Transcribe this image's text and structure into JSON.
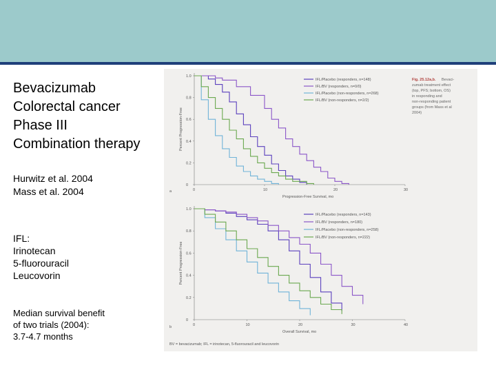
{
  "slide": {
    "title_lines": [
      "Bevacizumab",
      "Colorectal cancer",
      "Phase III",
      "Combination therapy"
    ],
    "refs": [
      "Hurwitz et al. 2004",
      "Mass et al. 2004"
    ],
    "abbr": [
      "IFL:",
      "Irinotecan",
      "5-fluorouracil",
      "Leucovorin"
    ],
    "benefit": [
      "Median survival benefit",
      "of two trials (2004):",
      "3.7-4.7 months"
    ]
  },
  "figure": {
    "caption_title": "Fig. 25.12a,b.",
    "caption_lines": [
      "Bevaci-",
      "zumab treatment effect",
      "(top, PFS; bottom, OS)",
      "in responding and",
      "non-responding patient",
      "groups (from Mass et al",
      "2004)"
    ],
    "footnote": "BV = bevacizumab; IFL = irinotecan, 5-fluorouracil and leucovorin",
    "colors": {
      "plac_resp": "#5a3fbd",
      "bv_resp": "#8a55c8",
      "plac_non": "#6fb3d8",
      "bv_non": "#6aa84f"
    }
  },
  "chart_data": [
    {
      "type": "line",
      "panel": "a",
      "ylabel": "Percent Progression-Free",
      "xlabel": "Progression-Free Survival, mo",
      "yticks": [
        "1.0",
        "0.8",
        "0.6",
        "0.4",
        "0.2",
        "0"
      ],
      "xticks": [
        "0",
        "10",
        "20",
        "30"
      ],
      "xlim": [
        0,
        30
      ],
      "ylim": [
        0,
        1
      ],
      "series": [
        {
          "name": "IFL/Placebo (responders, n=148)",
          "x": [
            0,
            1,
            2,
            3,
            4,
            5,
            6,
            7,
            8,
            9,
            10,
            11,
            12,
            13,
            14,
            15,
            16
          ],
          "y": [
            1,
            1,
            0.97,
            0.92,
            0.85,
            0.76,
            0.65,
            0.55,
            0.44,
            0.35,
            0.27,
            0.19,
            0.13,
            0.08,
            0.05,
            0.02,
            0
          ]
        },
        {
          "name": "IFL/BV (responders, n=0/0)",
          "x": [
            0,
            2,
            3,
            4,
            6,
            8,
            10,
            11,
            12,
            13,
            14,
            15,
            16,
            17,
            18,
            19,
            20,
            21,
            22
          ],
          "y": [
            1,
            1,
            0.98,
            0.96,
            0.9,
            0.82,
            0.7,
            0.6,
            0.52,
            0.42,
            0.35,
            0.28,
            0.22,
            0.16,
            0.12,
            0.06,
            0.03,
            0.01,
            0
          ]
        },
        {
          "name": "IFL/Placebo (non-responders, n=268)",
          "x": [
            0,
            1,
            2,
            3,
            4,
            5,
            6,
            7,
            8,
            9,
            10,
            11,
            12
          ],
          "y": [
            1,
            0.78,
            0.6,
            0.45,
            0.33,
            0.25,
            0.17,
            0.12,
            0.08,
            0.05,
            0.03,
            0.01,
            0
          ]
        },
        {
          "name": "IFL/BV (non-responders, n=2/2)",
          "x": [
            0,
            1,
            2,
            3,
            4,
            5,
            6,
            7,
            8,
            9,
            10,
            11,
            12,
            13,
            14,
            16,
            17
          ],
          "y": [
            1,
            0.9,
            0.8,
            0.7,
            0.6,
            0.5,
            0.42,
            0.33,
            0.26,
            0.2,
            0.15,
            0.11,
            0.08,
            0.05,
            0.03,
            0.01,
            0
          ]
        }
      ]
    },
    {
      "type": "line",
      "panel": "b",
      "ylabel": "Percent Progression-Free",
      "xlabel": "Overall Survival, mo",
      "yticks": [
        "1.0",
        "0.8",
        "0.6",
        "0.4",
        "0.2",
        "0"
      ],
      "xticks": [
        "0",
        "10",
        "20",
        "30",
        "40"
      ],
      "xlim": [
        0,
        40
      ],
      "ylim": [
        0,
        1
      ],
      "series": [
        {
          "name": "IFL/Placebo (responders, n=143)",
          "x": [
            0,
            2,
            4,
            6,
            8,
            10,
            12,
            14,
            16,
            18,
            20,
            22,
            24,
            26,
            28
          ],
          "y": [
            1,
            0.99,
            0.98,
            0.96,
            0.93,
            0.9,
            0.86,
            0.8,
            0.72,
            0.62,
            0.5,
            0.38,
            0.25,
            0.15,
            0.08
          ]
        },
        {
          "name": "IFL/BV (responders, n=180)",
          "x": [
            0,
            2,
            4,
            6,
            8,
            10,
            12,
            14,
            16,
            18,
            20,
            22,
            24,
            26,
            28,
            30,
            32
          ],
          "y": [
            1,
            0.99,
            0.98,
            0.97,
            0.95,
            0.92,
            0.89,
            0.85,
            0.8,
            0.74,
            0.68,
            0.6,
            0.5,
            0.4,
            0.3,
            0.22,
            0.14
          ]
        },
        {
          "name": "IFL/Placebo (non-responders, n=258)",
          "x": [
            0,
            2,
            4,
            6,
            8,
            10,
            12,
            14,
            16,
            18,
            20,
            22
          ],
          "y": [
            1,
            0.92,
            0.82,
            0.72,
            0.62,
            0.52,
            0.42,
            0.33,
            0.25,
            0.17,
            0.1,
            0.04
          ]
        },
        {
          "name": "IFL/BV (non-responders, n=222)",
          "x": [
            0,
            2,
            4,
            6,
            8,
            10,
            12,
            14,
            16,
            18,
            20,
            22,
            24,
            26,
            28
          ],
          "y": [
            1,
            0.95,
            0.88,
            0.8,
            0.72,
            0.64,
            0.56,
            0.48,
            0.4,
            0.33,
            0.26,
            0.2,
            0.14,
            0.09,
            0.05
          ]
        }
      ]
    }
  ]
}
